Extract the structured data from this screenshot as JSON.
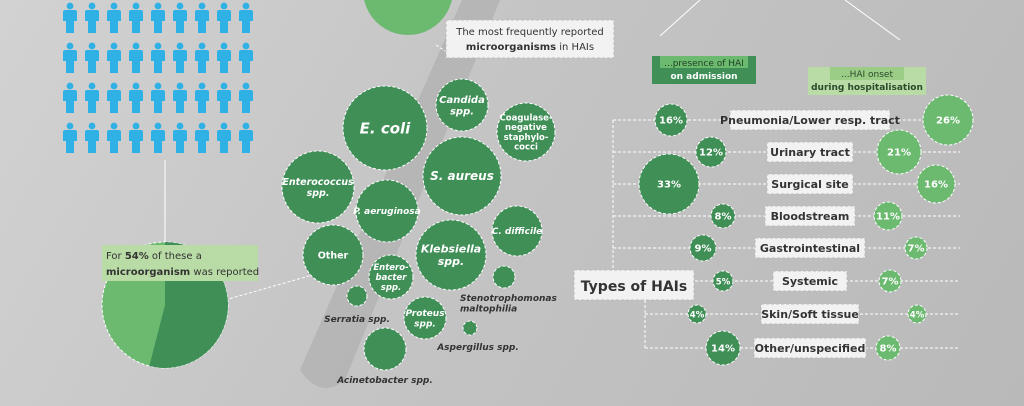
{
  "colors": {
    "dark_green": "#3f8f57",
    "light_green": "#6cba70",
    "person_blue": "#2fb1e6",
    "label_bg": "#f2f2f2",
    "note_bg": "#b9dca6"
  },
  "icons": {
    "person": "person-icon"
  },
  "pie_note": {
    "prefix": "For ",
    "pct": "54%",
    "middle": " of these a",
    "bold": "microorganism",
    "suffix": " was reported",
    "value_fraction": 0.54
  },
  "micro_title": {
    "line1": "The most frequently reported",
    "bold": "microorganisms",
    "rest": " in HAIs"
  },
  "microorganisms": [
    {
      "name": "E. coli"
    },
    {
      "name": "Candida spp."
    },
    {
      "name": "Coagulase-negative staphylo-cocci"
    },
    {
      "name": "S. aureus"
    },
    {
      "name": "Enterococcus spp."
    },
    {
      "name": "P. aeruginosa"
    },
    {
      "name": "C. difficile"
    },
    {
      "name": "Klebsiella spp."
    },
    {
      "name": "Other"
    },
    {
      "name": "Entero-bacter spp."
    },
    {
      "name": "Stenotrophomonas maltophilia"
    },
    {
      "name": "Serratia spp."
    },
    {
      "name": "Proteus spp."
    },
    {
      "name": "Aspergillus spp."
    },
    {
      "name": "Acinetobacter spp."
    }
  ],
  "hai": {
    "title": "Types of HAIs",
    "admission_label": {
      "line1": "...presence of HAI",
      "line2": "on admission"
    },
    "onset_label": {
      "line1": "...HAI onset",
      "line2": "during hospitalisation"
    },
    "types": [
      {
        "label": "Pneumonia/Lower resp. tract",
        "admission": "16%",
        "onset": "26%"
      },
      {
        "label": "Urinary tract",
        "admission": "12%",
        "onset": "21%"
      },
      {
        "label": "Surgical site",
        "admission": "33%",
        "onset": "16%"
      },
      {
        "label": "Bloodstream",
        "admission": "8%",
        "onset": "11%"
      },
      {
        "label": "Gastrointestinal",
        "admission": "9%",
        "onset": "7%"
      },
      {
        "label": "Systemic",
        "admission": "5%",
        "onset": "7%"
      },
      {
        "label": "Skin/Soft tissue",
        "admission": "4%",
        "onset": "4%"
      },
      {
        "label": "Other/unspecified",
        "admission": "14%",
        "onset": "8%"
      }
    ]
  }
}
